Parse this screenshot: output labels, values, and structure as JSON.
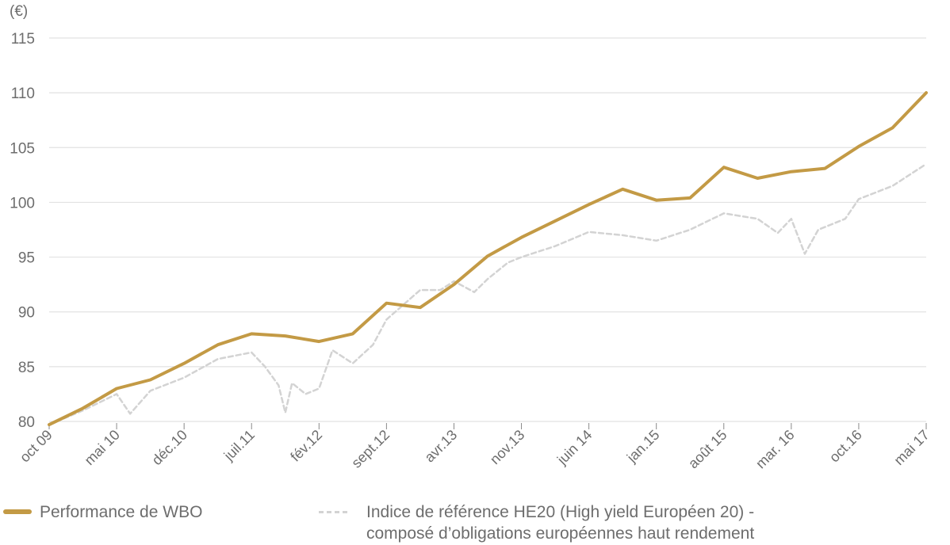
{
  "chart_data": {
    "type": "line",
    "unit_label": "(€)",
    "ylim": [
      80,
      115
    ],
    "y_ticks": [
      "80",
      "85",
      "90",
      "95",
      "100",
      "105",
      "110",
      "115"
    ],
    "x_tick_labels": [
      "oct 09",
      "mai 10",
      "déc.10",
      "juil.11",
      "fév.12",
      "sept.12",
      "avr.13",
      "nov.13",
      "juin 14",
      "jan.15",
      "août 15",
      "mar. 16",
      "oct.16",
      "mai 17"
    ],
    "grid": "horizontal",
    "legend_position": "bottom",
    "colors": {
      "wbo": "#c39a45",
      "benchmark": "#d3d3d3"
    },
    "series": [
      {
        "name": "Performance de WBO",
        "style": "solid",
        "x": [
          0,
          0.5,
          1,
          1.5,
          2,
          2.5,
          3,
          3.5,
          4,
          4.5,
          5,
          5.5,
          6,
          6.5,
          7,
          7.5,
          8,
          8.5,
          9,
          9.5,
          10,
          10.5,
          11,
          11.5,
          12,
          12.5,
          13
        ],
        "values": [
          79.7,
          81.2,
          83.0,
          83.8,
          85.3,
          87.0,
          88.0,
          87.8,
          87.3,
          88.0,
          90.8,
          90.4,
          92.5,
          95.1,
          96.8,
          98.3,
          99.8,
          101.2,
          100.2,
          100.4,
          103.2,
          102.2,
          102.8,
          103.1,
          105.1,
          106.8,
          110.0
        ]
      },
      {
        "name": "Indice de référence HE20 (High yield Européen 20) - composé d’obligations européennes haut rendement",
        "style": "dashed",
        "x": [
          0,
          0.5,
          1,
          1.2,
          1.5,
          2,
          2.5,
          3,
          3.2,
          3.4,
          3.5,
          3.6,
          3.8,
          4,
          4.2,
          4.5,
          4.8,
          5,
          5.5,
          5.8,
          6,
          6.3,
          6.5,
          6.8,
          7,
          7.5,
          8,
          8.5,
          9,
          9.5,
          10,
          10.5,
          10.8,
          11,
          11.2,
          11.4,
          11.6,
          11.8,
          12,
          12.5,
          13
        ],
        "values": [
          79.7,
          81.0,
          82.5,
          80.7,
          82.8,
          84.0,
          85.7,
          86.3,
          85.0,
          83.3,
          80.8,
          83.5,
          82.5,
          83.0,
          86.5,
          85.3,
          87.0,
          89.3,
          92.0,
          92.0,
          92.8,
          91.8,
          93.0,
          94.5,
          95.0,
          96.0,
          97.3,
          97.0,
          96.5,
          97.5,
          99.0,
          98.5,
          97.2,
          98.5,
          95.3,
          97.5,
          98.0,
          98.5,
          100.3,
          101.5,
          103.5
        ]
      }
    ]
  },
  "legend": {
    "wbo_label": "Performance de WBO",
    "benchmark_label_line1": "Indice de référence HE20 (High yield Européen 20) -",
    "benchmark_label_line2": "composé d’obligations européennes haut rendement"
  }
}
